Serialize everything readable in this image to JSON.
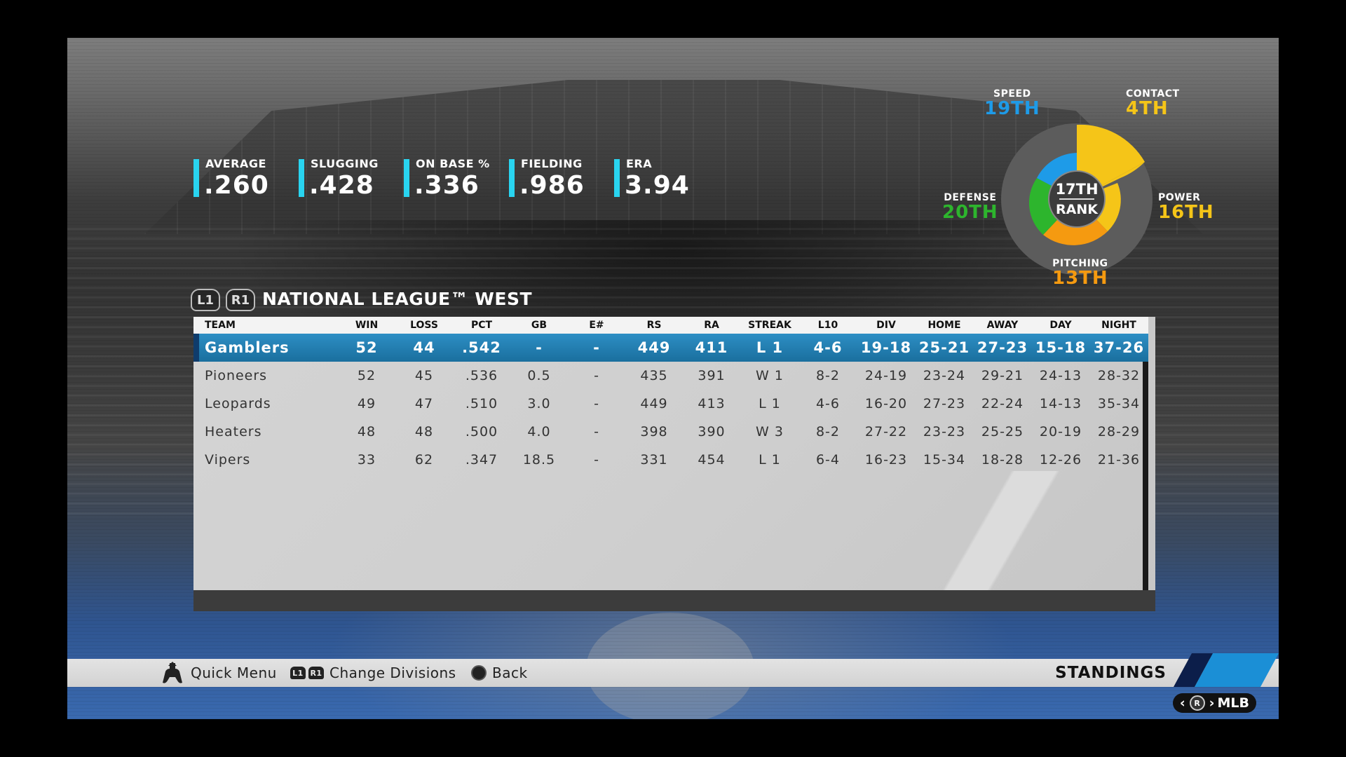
{
  "stats": [
    {
      "label": "AVERAGE",
      "value": ".260"
    },
    {
      "label": "SLUGGING",
      "value": ".428"
    },
    {
      "label": "ON BASE %",
      "value": ".336"
    },
    {
      "label": "FIELDING",
      "value": ".986"
    },
    {
      "label": "ERA",
      "value": "3.94"
    }
  ],
  "rank_chart": {
    "center_rank": "17TH",
    "center_label": "RANK",
    "speed": {
      "label": "SPEED",
      "value": "19TH",
      "color": "#1e9be8"
    },
    "contact": {
      "label": "CONTACT",
      "value": "4TH",
      "color": "#f5c518"
    },
    "power": {
      "label": "POWER",
      "value": "16TH",
      "color": "#f5c518"
    },
    "pitching": {
      "label": "PITCHING",
      "value": "13TH",
      "color": "#f59a10"
    },
    "defense": {
      "label": "DEFENSE",
      "value": "20TH",
      "color": "#2db52d"
    }
  },
  "division": {
    "l1": "L1",
    "r1": "R1",
    "title": "NATIONAL LEAGUE™ WEST"
  },
  "table": {
    "headers": [
      "TEAM",
      "WIN",
      "LOSS",
      "PCT",
      "GB",
      "E#",
      "RS",
      "RA",
      "STREAK",
      "L10",
      "DIV",
      "HOME",
      "AWAY",
      "DAY",
      "NIGHT"
    ],
    "rows": [
      [
        "Gamblers",
        "52",
        "44",
        ".542",
        "-",
        "-",
        "449",
        "411",
        "L 1",
        "4-6",
        "19-18",
        "25-21",
        "27-23",
        "15-18",
        "37-26"
      ],
      [
        "Pioneers",
        "52",
        "45",
        ".536",
        "0.5",
        "-",
        "435",
        "391",
        "W 1",
        "8-2",
        "24-19",
        "23-24",
        "29-21",
        "24-13",
        "28-32"
      ],
      [
        "Leopards",
        "49",
        "47",
        ".510",
        "3.0",
        "-",
        "449",
        "413",
        "L 1",
        "4-6",
        "16-20",
        "27-23",
        "22-24",
        "14-13",
        "35-34"
      ],
      [
        "Heaters",
        "48",
        "48",
        ".500",
        "4.0",
        "-",
        "398",
        "390",
        "W 3",
        "8-2",
        "27-22",
        "23-23",
        "25-25",
        "20-19",
        "28-29"
      ],
      [
        "Vipers",
        "33",
        "62",
        ".347",
        "18.5",
        "-",
        "331",
        "454",
        "L 1",
        "6-4",
        "16-23",
        "15-34",
        "18-28",
        "12-26",
        "21-36"
      ]
    ]
  },
  "bottom_bar": {
    "quick_menu": "Quick Menu",
    "l1": "L1",
    "r1": "R1",
    "change_divisions": "Change Divisions",
    "back": "Back",
    "screen_title": "STANDINGS"
  },
  "tab_nav": {
    "button": "R",
    "label": "MLB"
  }
}
